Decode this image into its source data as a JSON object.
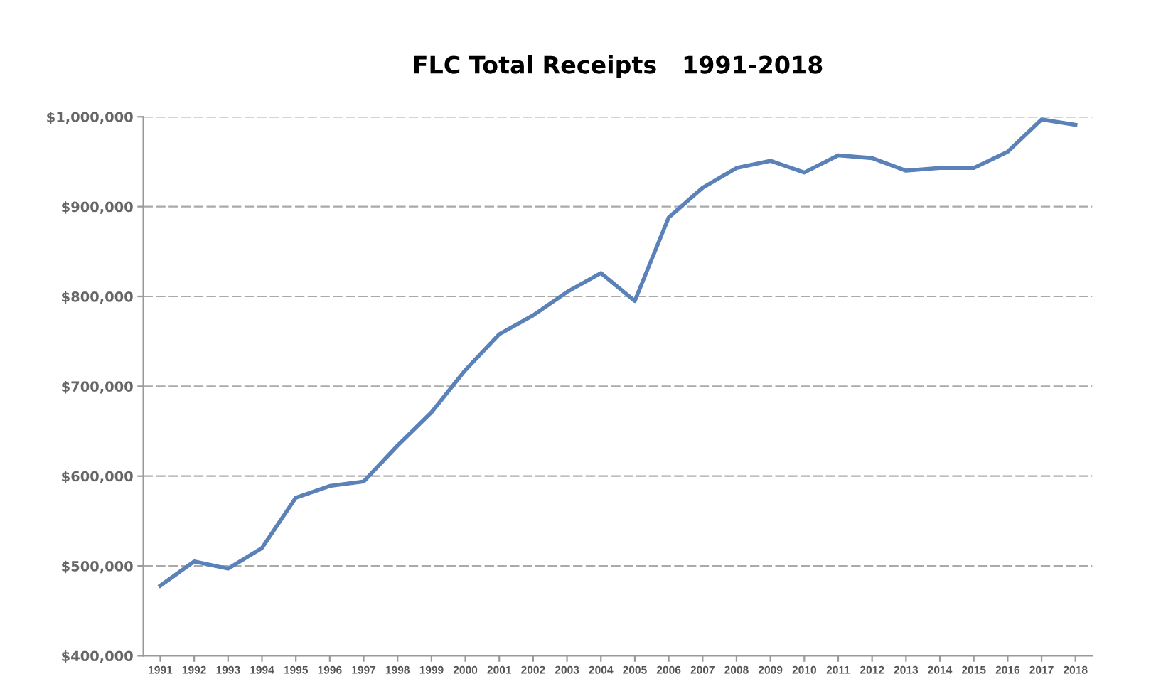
{
  "chart_data": {
    "type": "line",
    "title": "FLC Total Receipts   1991-2018",
    "categories": [
      "1991",
      "1992",
      "1993",
      "1994",
      "1995",
      "1996",
      "1997",
      "1998",
      "1999",
      "2000",
      "2001",
      "2002",
      "2003",
      "2004",
      "2005",
      "2006",
      "2007",
      "2008",
      "2009",
      "2010",
      "2011",
      "2012",
      "2013",
      "2014",
      "2015",
      "2016",
      "2017",
      "2018"
    ],
    "series": [
      {
        "color": "#5b82b8",
        "values": [
          478000,
          505000,
          497000,
          520000,
          576000,
          589000,
          594000,
          634000,
          671000,
          718000,
          758000,
          779000,
          805000,
          826000,
          795000,
          888000,
          921000,
          943000,
          951000,
          938000,
          957000,
          954000,
          940000,
          943000,
          943000,
          961000,
          997000,
          991000
        ]
      }
    ],
    "ylim": [
      400000,
      1000000
    ],
    "yticks": [
      {
        "value": 400000,
        "label": "$400,000"
      },
      {
        "value": 500000,
        "label": "$500,000"
      },
      {
        "value": 600000,
        "label": "$600,000"
      },
      {
        "value": 700000,
        "label": "$700,000"
      },
      {
        "value": 800000,
        "label": "$800,000"
      },
      {
        "value": 900000,
        "label": "$900,000"
      },
      {
        "value": 1000000,
        "label": "$1,000,000"
      }
    ],
    "grid": "y",
    "marker": "none",
    "line_style": "solid"
  }
}
